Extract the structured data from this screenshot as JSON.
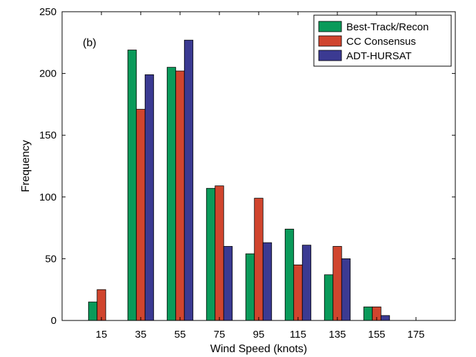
{
  "chart_data": {
    "type": "bar",
    "panel_label": "(b)",
    "xlabel": "Wind Speed (knots)",
    "ylabel": "Frequency",
    "categories": [
      "15",
      "35",
      "55",
      "75",
      "95",
      "115",
      "135",
      "155",
      "175"
    ],
    "ylim": [
      0,
      250
    ],
    "yticks": [
      0,
      50,
      100,
      150,
      200,
      250
    ],
    "grid": false,
    "legend_position": "top-right",
    "series": [
      {
        "name": "Best-Track/Recon",
        "color": "#0a9a5a",
        "values": [
          15,
          219,
          205,
          107,
          54,
          74,
          37,
          11,
          0
        ]
      },
      {
        "name": "CC Consensus",
        "color": "#d0452e",
        "values": [
          25,
          171,
          202,
          109,
          99,
          45,
          60,
          11,
          0
        ]
      },
      {
        "name": "ADT-HURSAT",
        "color": "#3b3a92",
        "values": [
          0,
          199,
          227,
          60,
          63,
          61,
          50,
          4,
          0
        ]
      }
    ]
  }
}
